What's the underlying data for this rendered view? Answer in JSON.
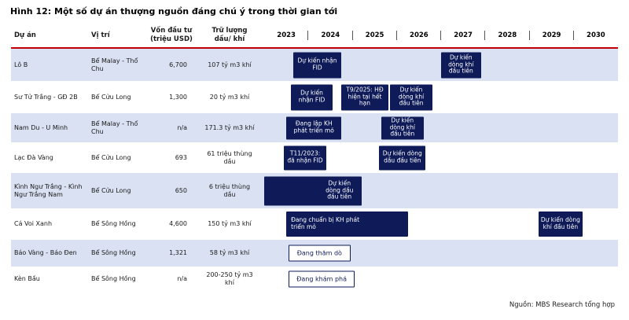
{
  "title": "Hình 12: Một số dự án thượng nguồn đáng chú ý trong thời gian tới",
  "source": "Nguồn: MBS Research tổng hợp",
  "colors": {
    "bar_fill": "#0e1b58",
    "bar_text": "#ffffff",
    "outline_bar_border": "#0e1b58",
    "outline_bar_text": "#0e1b58",
    "row_stripe": "#d9e1f2",
    "header_rule": "#c00000",
    "text": "#1a1a1a"
  },
  "chart_data": {
    "type": "table",
    "subtype": "gantt_timeline",
    "columns": {
      "project": "Dự án",
      "location": "Vị trí",
      "capital": "Vốn đầu tư\n(triệu USD)",
      "reserves": "Trữ lượng\ndầu/ khí"
    },
    "years": [
      "2023",
      "2024",
      "2025",
      "2026",
      "2027",
      "2028",
      "2029",
      "2030"
    ],
    "year_range": [
      2023,
      2031
    ],
    "rows": [
      {
        "project": "Lô B",
        "location": "Bể Malay - Thổ Chu",
        "capital": "6,700",
        "reserves": "107 tỷ m3 khí",
        "bars": [
          {
            "label": "Dự kiến nhận FID",
            "start": 2023.65,
            "end": 2024.75,
            "style": "filled"
          },
          {
            "label": "Dự kiến dòng khí đầu tiên",
            "start": 2027.0,
            "end": 2027.9,
            "style": "filled"
          }
        ]
      },
      {
        "project": "Sư Tử Trắng - GĐ 2B",
        "location": "Bể Cửu Long",
        "capital": "1,300",
        "reserves": "20 tỷ m3 khí",
        "bars": [
          {
            "label": "Dự kiến nhận FID",
            "start": 2023.6,
            "end": 2024.55,
            "style": "filled"
          },
          {
            "label": "T9/2025: HĐ hiện tại hết hạn",
            "start": 2024.75,
            "end": 2025.8,
            "style": "filled"
          },
          {
            "label": "Dự kiến dòng khí đầu tiên",
            "start": 2025.85,
            "end": 2026.8,
            "style": "filled"
          }
        ]
      },
      {
        "project": "Nam Du - U Minh",
        "location": "Bể Malay - Thổ Chu",
        "capital": "n/a",
        "reserves": "171.3 tỷ m3 khí",
        "bars": [
          {
            "label": "Đang lập KH phát triển mỏ",
            "start": 2023.5,
            "end": 2024.75,
            "style": "filled"
          },
          {
            "label": "Dự kiến dòng khí đầu tiên",
            "start": 2025.65,
            "end": 2026.6,
            "style": "filled"
          }
        ]
      },
      {
        "project": "Lạc Đà Vàng",
        "location": "Bể Cửu Long",
        "capital": "693",
        "reserves": "61 triệu thùng dầu",
        "bars": [
          {
            "label": "T11/2023: đã nhận FID",
            "start": 2023.45,
            "end": 2024.4,
            "style": "filled"
          },
          {
            "label": "Dự kiến dòng dầu đầu tiên",
            "start": 2025.6,
            "end": 2026.65,
            "style": "filled"
          }
        ]
      },
      {
        "project": "Kình Ngư Trắng - Kình Ngư Trắng Nam",
        "location": "Bể Cửu Long",
        "capital": "650",
        "reserves": "6 triệu thùng dầu",
        "bars": [
          {
            "label": "Dự kiến dòng dầu đầu tiên",
            "start": 2023.0,
            "end": 2025.2,
            "style": "filled",
            "align": "right"
          }
        ]
      },
      {
        "project": "Cá Voi Xanh",
        "location": "Bể Sông Hồng",
        "capital": "4,600",
        "reserves": "150 tỷ m3 khí",
        "bars": [
          {
            "label": "Đang chuẩn bị KH phát triển mỏ",
            "start": 2023.5,
            "end": 2026.25,
            "style": "filled",
            "align": "left"
          },
          {
            "label": "Dự kiến dòng khí đầu tiên",
            "start": 2029.2,
            "end": 2030.2,
            "style": "filled"
          }
        ]
      },
      {
        "project": "Báo Vàng - Báo Đen",
        "location": "Bể Sông Hồng",
        "capital": "1,321",
        "reserves": "58 tỷ m3 khí",
        "bars": [
          {
            "label": "Đang thăm dò",
            "start": 2023.55,
            "end": 2024.95,
            "style": "outline"
          }
        ]
      },
      {
        "project": "Kèn Bầu",
        "location": "Bể Sông Hồng",
        "capital": "n/a",
        "reserves": "200-250 tỷ m3 khí",
        "bars": [
          {
            "label": "Đang khám phá",
            "start": 2023.55,
            "end": 2025.05,
            "style": "outline"
          }
        ]
      }
    ]
  }
}
